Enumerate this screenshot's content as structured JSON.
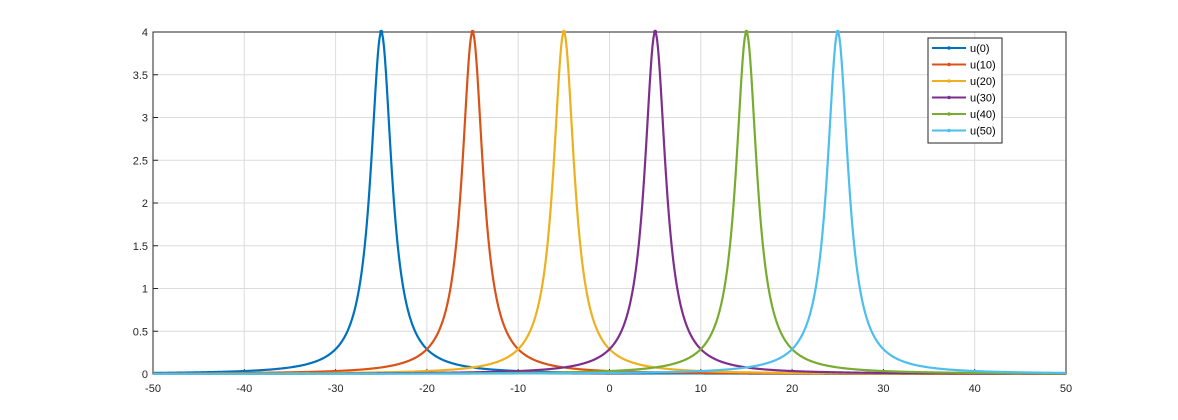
{
  "chart_data": {
    "type": "line",
    "title": "",
    "xlabel": "",
    "ylabel": "",
    "xlim": [
      -50,
      50
    ],
    "ylim": [
      0,
      4
    ],
    "x_ticks": [
      -50,
      -40,
      -30,
      -20,
      -10,
      0,
      10,
      20,
      30,
      40,
      50
    ],
    "y_ticks": [
      0,
      0.5,
      1,
      1.5,
      2,
      2.5,
      3,
      3.5,
      4
    ],
    "x_tick_labels": [
      "-50",
      "-40",
      "-30",
      "-20",
      "-10",
      "0",
      "10",
      "20",
      "30",
      "40",
      "50"
    ],
    "y_tick_labels": [
      "0",
      "0.5",
      "1",
      "1.5",
      "2",
      "2.5",
      "3",
      "3.5",
      "4"
    ],
    "grid": true,
    "legend_position": "top-right",
    "series": [
      {
        "name": "u(0)",
        "color": "#0072BD",
        "peak_x": -25,
        "peak_y": 4,
        "half_width_at_half_max": 1.4
      },
      {
        "name": "u(10)",
        "color": "#D95319",
        "peak_x": -15,
        "peak_y": 4,
        "half_width_at_half_max": 1.4
      },
      {
        "name": "u(20)",
        "color": "#EDB120",
        "peak_x": -5,
        "peak_y": 4,
        "half_width_at_half_max": 1.4
      },
      {
        "name": "u(30)",
        "color": "#7E2F8E",
        "peak_x": 5,
        "peak_y": 4,
        "half_width_at_half_max": 1.4
      },
      {
        "name": "u(40)",
        "color": "#77AC30",
        "peak_x": 15,
        "peak_y": 4,
        "half_width_at_half_max": 1.4
      },
      {
        "name": "u(50)",
        "color": "#4DBEEE",
        "peak_x": 25,
        "peak_y": 4,
        "half_width_at_half_max": 1.4
      }
    ]
  }
}
